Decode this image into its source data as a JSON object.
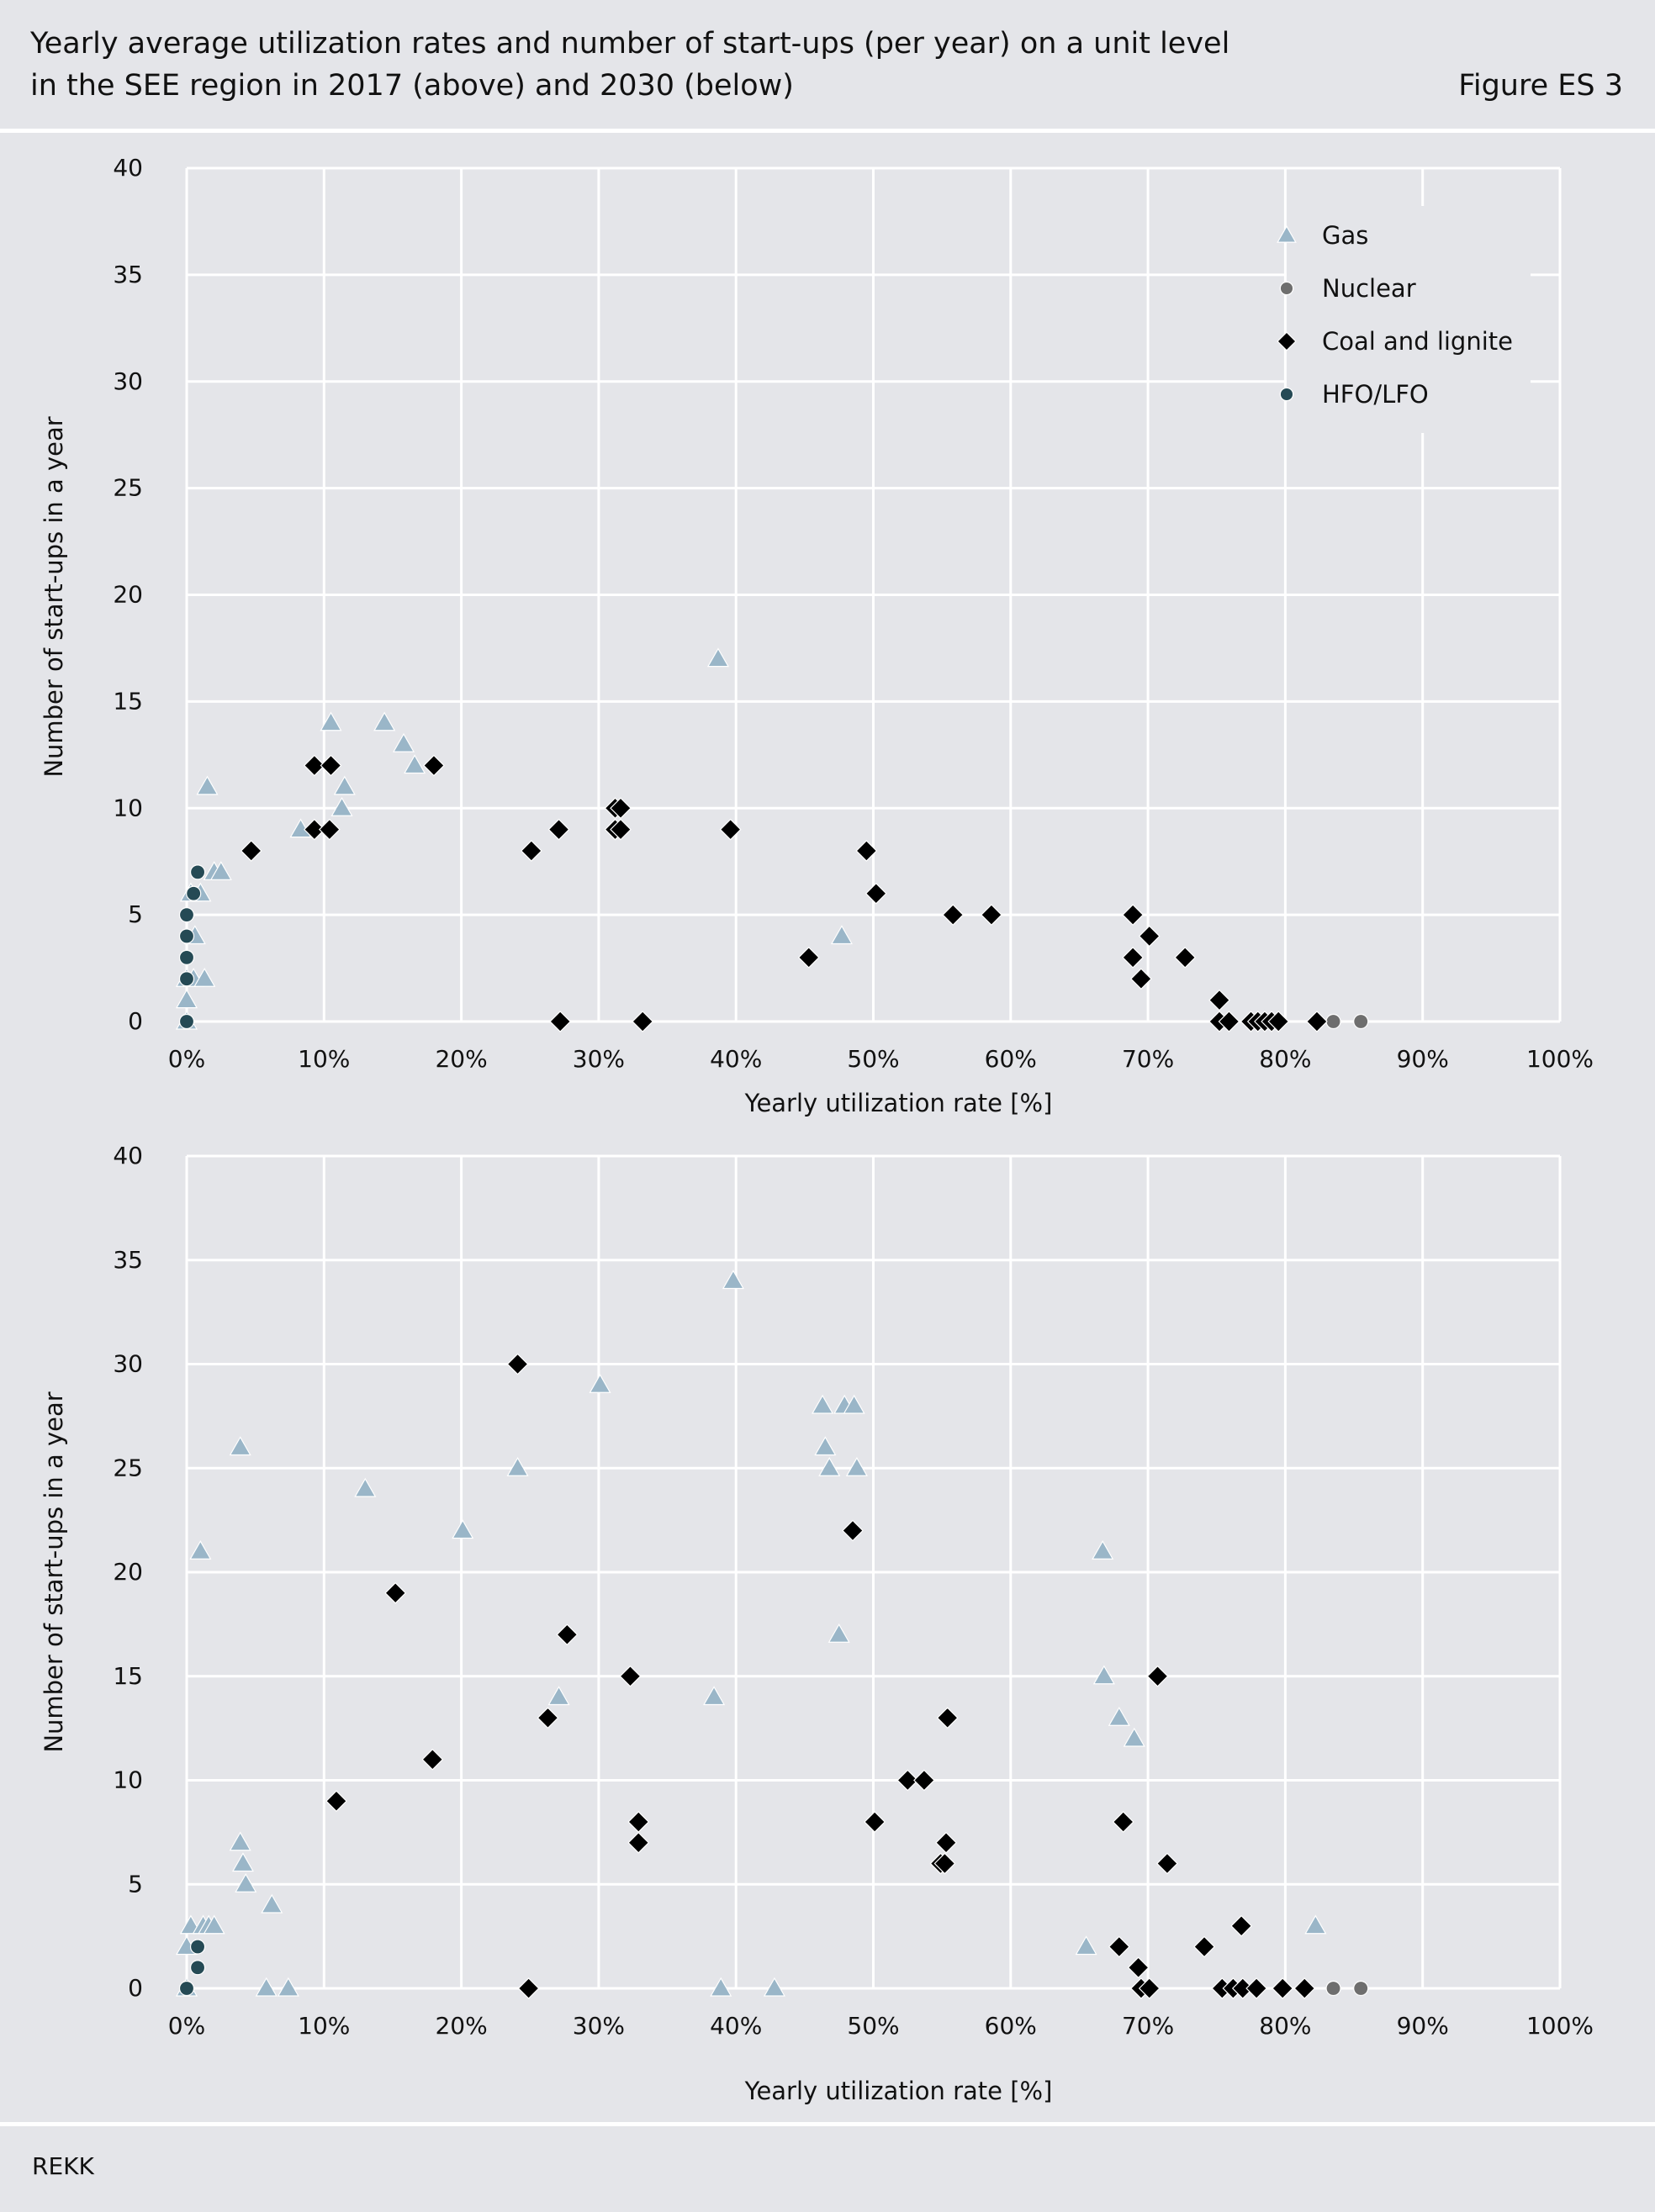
{
  "header": {
    "title_line1": "Yearly average utilization rates and number of start-ups (per year) on a unit level",
    "title_line2": "in the SEE region in 2017 (above) and 2030 (below)",
    "figure_label": "Figure ES 3"
  },
  "footer": {
    "source": "REKK"
  },
  "colors": {
    "gas": "#9ab6c8",
    "nuclear": "#6e6e6e",
    "coal": "#000000",
    "hfo": "#254a55",
    "background": "#e4e5e9",
    "grid": "#ffffff"
  },
  "chart_data": [
    {
      "type": "scatter",
      "panel": "2017",
      "xlabel": "Yearly utilization rate [%]",
      "ylabel": "Number of start-ups in a year",
      "xlim": [
        0,
        100
      ],
      "ylim": [
        0,
        40
      ],
      "x_ticks": [
        "0%",
        "10%",
        "20%",
        "30%",
        "40%",
        "50%",
        "60%",
        "70%",
        "80%",
        "90%",
        "100%"
      ],
      "y_ticks": [
        "0",
        "5",
        "10",
        "15",
        "20",
        "25",
        "30",
        "35",
        "40"
      ],
      "grid": true,
      "legend_position": "top-right",
      "series": [
        {
          "name": "Gas",
          "marker": "triangle",
          "x": [
            0,
            0,
            0,
            0.3,
            0.6,
            1,
            1.5,
            2,
            2.5,
            0.5,
            1.3,
            8.3,
            10.5,
            11.5,
            11.3,
            14.4,
            15.8,
            16.6,
            38.7,
            47.7
          ],
          "y": [
            0,
            1,
            2,
            6,
            4,
            6,
            11,
            7,
            7,
            2,
            2,
            9,
            14,
            11,
            10,
            14,
            13,
            12,
            17,
            4
          ]
        },
        {
          "name": "Nuclear",
          "marker": "circle",
          "x": [
            83.5,
            85.5
          ],
          "y": [
            0,
            0
          ]
        },
        {
          "name": "Coal and lignite",
          "marker": "diamond",
          "x": [
            4.7,
            9.3,
            9.3,
            10.5,
            10.4,
            18,
            25.1,
            27.1,
            27.2,
            31.2,
            31.6,
            31.2,
            31.6,
            33.2,
            39.6,
            45.3,
            49.5,
            50.2,
            55.8,
            58.6,
            68.9,
            68.9,
            69.5,
            70.1,
            72.7,
            75.2,
            75.2,
            75.9,
            77.5,
            78,
            78.5,
            79,
            79.5,
            82.3
          ],
          "y": [
            8,
            12,
            9,
            12,
            9,
            12,
            8,
            9,
            0,
            10,
            10,
            9,
            9,
            0,
            9,
            3,
            8,
            6,
            5,
            5,
            5,
            3,
            2,
            4,
            3,
            1,
            0,
            0,
            0,
            0,
            0,
            0,
            0,
            0
          ]
        },
        {
          "name": "HFO/LFO",
          "marker": "circle",
          "x": [
            0,
            0,
            0,
            0,
            0,
            0.5,
            0.8
          ],
          "y": [
            0,
            2,
            3,
            4,
            5,
            6,
            7
          ]
        }
      ]
    },
    {
      "type": "scatter",
      "panel": "2030",
      "xlabel": "Yearly utilization rate [%]",
      "ylabel": "Number of start-ups in a year",
      "xlim": [
        0,
        100
      ],
      "ylim": [
        0,
        40
      ],
      "x_ticks": [
        "0%",
        "10%",
        "20%",
        "30%",
        "40%",
        "50%",
        "60%",
        "70%",
        "80%",
        "90%",
        "100%"
      ],
      "y_ticks": [
        "0",
        "5",
        "10",
        "15",
        "20",
        "25",
        "30",
        "35",
        "40"
      ],
      "grid": true,
      "series": [
        {
          "name": "Gas",
          "marker": "triangle",
          "x": [
            0,
            0,
            0.3,
            1.2,
            1.0,
            1.6,
            2.0,
            3.9,
            3.9,
            4.3,
            4.1,
            5.8,
            6.2,
            7.4,
            13.0,
            20.1,
            24.1,
            27.1,
            30.1,
            38.4,
            38.9,
            39.8,
            42.8,
            46.3,
            46.5,
            46.8,
            47.5,
            47.9,
            48.6,
            48.8,
            65.5,
            66.7,
            66.8,
            67.9,
            69.0,
            82.2
          ],
          "y": [
            0,
            2,
            3,
            3,
            21,
            3,
            3,
            26,
            7,
            5,
            6,
            0,
            4,
            0,
            24,
            22,
            25,
            14,
            29,
            14,
            0,
            34,
            0,
            28,
            26,
            25,
            17,
            28,
            28,
            25,
            2,
            21,
            15,
            13,
            12,
            3
          ]
        },
        {
          "name": "Nuclear",
          "marker": "circle",
          "x": [
            83.5,
            85.5
          ],
          "y": [
            0,
            0
          ]
        },
        {
          "name": "Coal and lignite",
          "marker": "diamond",
          "x": [
            10.9,
            15.2,
            17.9,
            24.1,
            24.9,
            26.3,
            27.7,
            32.3,
            32.9,
            32.9,
            48.5,
            50.1,
            52.5,
            53.7,
            54.9,
            55.2,
            55.3,
            55.4,
            67.9,
            68.2,
            69.3,
            69.5,
            70.1,
            70.7,
            71.4,
            74.1,
            75.4,
            76.2,
            76.9,
            76.8,
            77.9,
            79.8,
            81.4
          ],
          "y": [
            9,
            19,
            11,
            30,
            0,
            13,
            17,
            15,
            8,
            7,
            22,
            8,
            10,
            10,
            6,
            6,
            7,
            13,
            2,
            8,
            1,
            0,
            0,
            15,
            6,
            2,
            0,
            0,
            0,
            3,
            0,
            0,
            0
          ]
        },
        {
          "name": "HFO/LFO",
          "marker": "circle",
          "x": [
            0,
            0.8,
            0.8
          ],
          "y": [
            0,
            1,
            2
          ]
        }
      ]
    }
  ]
}
